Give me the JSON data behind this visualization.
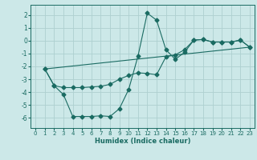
{
  "xlabel": "Humidex (Indice chaleur)",
  "ylabel": "",
  "bg_color": "#cce8e8",
  "grid_color": "#aed0d0",
  "line_color": "#1a6b62",
  "xlim": [
    -0.5,
    23.5
  ],
  "ylim": [
    -6.8,
    2.8
  ],
  "yticks": [
    -6,
    -5,
    -4,
    -3,
    -2,
    -1,
    0,
    1,
    2
  ],
  "xticks": [
    0,
    1,
    2,
    3,
    4,
    5,
    6,
    7,
    8,
    9,
    10,
    11,
    12,
    13,
    14,
    15,
    16,
    17,
    18,
    19,
    20,
    21,
    22,
    23
  ],
  "line1_x": [
    1,
    2,
    3,
    4,
    5,
    6,
    7,
    8,
    9,
    10,
    11,
    12,
    13,
    14,
    15,
    16,
    17,
    18,
    19,
    20,
    21,
    22,
    23
  ],
  "line1_y": [
    -2.2,
    -3.5,
    -4.2,
    -5.9,
    -5.9,
    -5.9,
    -5.85,
    -5.9,
    -5.3,
    -3.8,
    -1.2,
    2.15,
    1.6,
    -0.7,
    -1.45,
    -0.9,
    0.05,
    0.1,
    -0.1,
    -0.1,
    -0.1,
    0.05,
    -0.5
  ],
  "line2_x": [
    1,
    2,
    3,
    4,
    5,
    6,
    7,
    8,
    9,
    10,
    11,
    12,
    13,
    14,
    15,
    16,
    17,
    18,
    19,
    20,
    21,
    22,
    23
  ],
  "line2_y": [
    -2.2,
    -3.5,
    -3.65,
    -3.65,
    -3.65,
    -3.6,
    -3.55,
    -3.4,
    -3.0,
    -2.7,
    -2.5,
    -2.55,
    -2.65,
    -1.25,
    -1.1,
    -0.7,
    0.05,
    0.1,
    -0.1,
    -0.1,
    -0.1,
    0.05,
    -0.5
  ],
  "line3_x": [
    1,
    23
  ],
  "line3_y": [
    -2.2,
    -0.5
  ]
}
